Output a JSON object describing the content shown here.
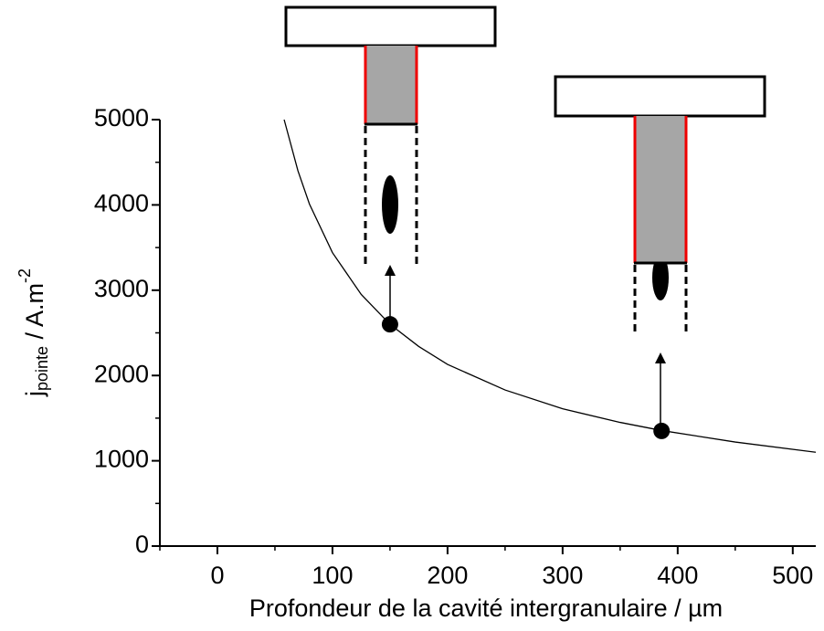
{
  "chart_data": {
    "type": "line",
    "xlabel": "Profondeur de la cavité intergranulaire / µm",
    "ylabel": {
      "main": "j",
      "sub": "pointe",
      "rest": " / A.m",
      "sup": "-2"
    },
    "xlim": [
      -50,
      520
    ],
    "ylim": [
      0,
      5000
    ],
    "xticks": [
      0,
      100,
      200,
      300,
      400,
      500
    ],
    "yticks": [
      0,
      1000,
      2000,
      3000,
      4000,
      5000
    ],
    "xminorticks": [
      -50,
      50,
      150,
      250,
      350,
      450
    ],
    "yminorticks": [
      500,
      1500,
      2500,
      3500,
      4500
    ],
    "series": [
      {
        "color": "#000000",
        "marker": false,
        "x": [
          58,
          70,
          80,
          100,
          125,
          150,
          175,
          200,
          250,
          300,
          350,
          386,
          450,
          520
        ],
        "values": [
          5000,
          4400,
          4010,
          3440,
          2950,
          2600,
          2340,
          2130,
          1830,
          1610,
          1450,
          1355,
          1220,
          1100
        ]
      },
      {
        "color": "#000000",
        "marker": true,
        "x": [
          150,
          386
        ],
        "values": [
          2600,
          1350
        ]
      }
    ]
  }
}
